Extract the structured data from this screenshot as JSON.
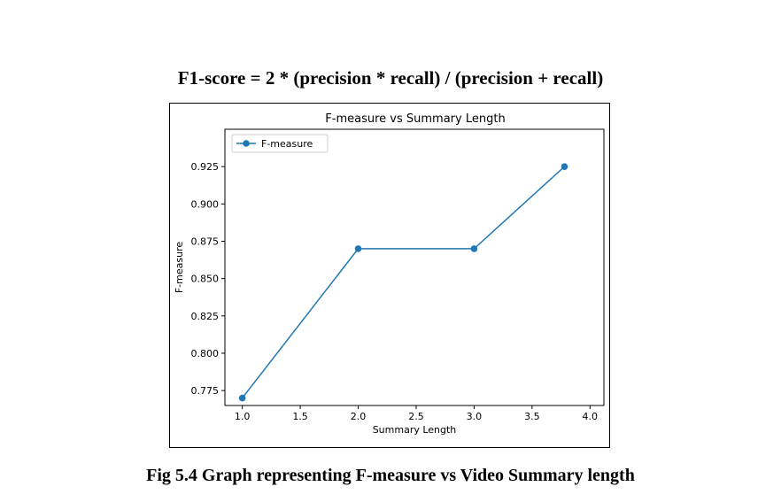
{
  "formula": "F1-score = 2 * (precision * recall) / (precision + recall)",
  "caption": "Fig 5.4 Graph representing F-measure vs Video Summary length",
  "chart_data": {
    "type": "line",
    "title": "F-measure vs Summary Length",
    "xlabel": "Summary Length",
    "ylabel": "F-measure",
    "xlim": [
      0.85,
      4.12
    ],
    "ylim": [
      0.765,
      0.95
    ],
    "x_ticks": [
      1.0,
      1.5,
      2.0,
      2.5,
      3.0,
      3.5,
      4.0
    ],
    "x_tick_labels": [
      "1.0",
      "1.5",
      "2.0",
      "2.5",
      "3.0",
      "3.5",
      "4.0"
    ],
    "y_ticks": [
      0.775,
      0.8,
      0.825,
      0.85,
      0.875,
      0.9,
      0.925
    ],
    "y_tick_labels": [
      "0.775",
      "0.800",
      "0.825",
      "0.850",
      "0.875",
      "0.900",
      "0.925"
    ],
    "grid": false,
    "legend_position": "top-left",
    "series": [
      {
        "name": "F-measure",
        "color": "#1f77b4",
        "marker": "circle",
        "x": [
          1.0,
          2.0,
          3.0,
          3.78
        ],
        "y": [
          0.77,
          0.87,
          0.87,
          0.925
        ]
      }
    ]
  }
}
